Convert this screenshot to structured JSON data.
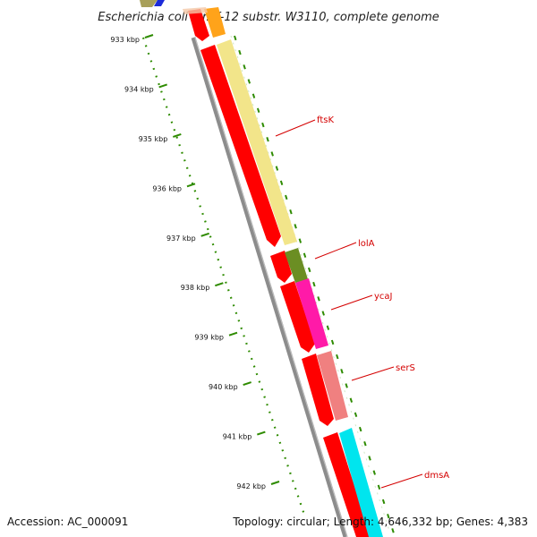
{
  "title": "Escherichia coli str. K-12 substr. W3110, complete genome",
  "footer": {
    "accession": "Accession: AC_000091",
    "summary": "Topology: circular; Length: 4,646,332 bp; Genes: 4,383"
  },
  "ticks": [
    "933 kbp",
    "934 kbp",
    "935 kbp",
    "936 kbp",
    "937 kbp",
    "938 kbp",
    "939 kbp",
    "940 kbp",
    "941 kbp",
    "942 kbp"
  ],
  "genes": [
    {
      "name": "ftsK",
      "color": "#f2e58a"
    },
    {
      "name": "lolA",
      "color": "#6b8e23"
    },
    {
      "name": "ycaJ",
      "color": "#ff1aa8"
    },
    {
      "name": "serS",
      "color": "#f08080"
    },
    {
      "name": "dmsA",
      "color": "#00e5ee"
    }
  ],
  "colors": {
    "backbone": "#8c8c8c",
    "cds": "#ff0000",
    "tick": "#2e8b00",
    "label": "#d40000"
  }
}
